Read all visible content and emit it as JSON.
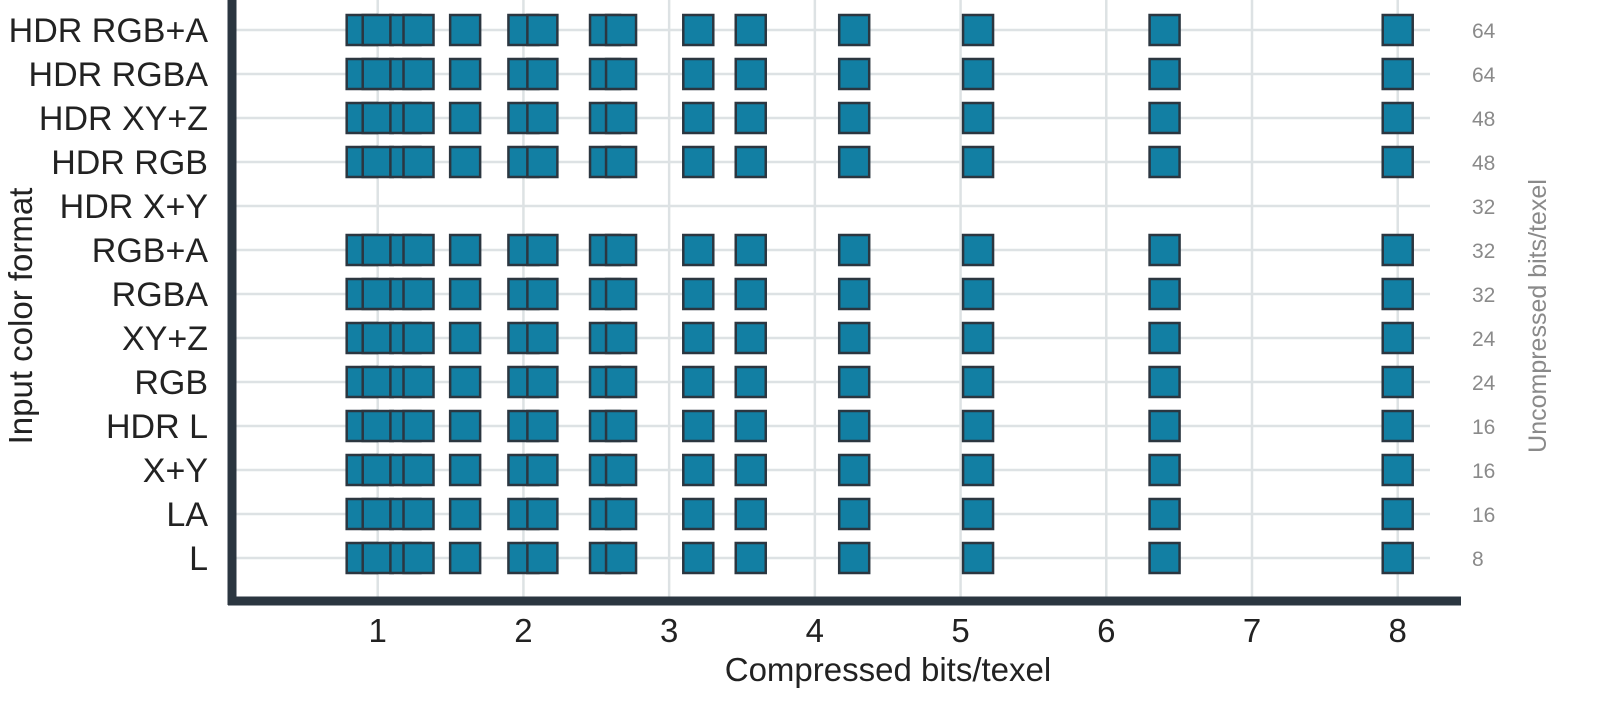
{
  "chart_data": {
    "type": "scatter",
    "marker": "square",
    "xlabel": "Compressed bits/texel",
    "ylabel": "Input color format",
    "y2label": "Uncompressed bits/texel",
    "xlim": [
      0,
      8.4
    ],
    "xticks": [
      1,
      2,
      3,
      4,
      5,
      6,
      7,
      8
    ],
    "categories": [
      "HDR RGB+A",
      "HDR RGBA",
      "HDR XY+Z",
      "HDR RGB",
      "HDR X+Y",
      "RGB+A",
      "RGBA",
      "XY+Z",
      "RGB",
      "HDR L",
      "X+Y",
      "LA",
      "L"
    ],
    "uncompressed_bits": [
      "64",
      "64",
      "48",
      "48",
      "32",
      "32",
      "32",
      "24",
      "24",
      "16",
      "16",
      "16",
      "8"
    ],
    "x_values": [
      0.89,
      1.0,
      1.19,
      1.28,
      1.6,
      2.0,
      2.13,
      2.56,
      2.67,
      3.2,
      3.56,
      4.27,
      5.12,
      6.4,
      8.0
    ],
    "empty_categories": [
      "HDR X+Y"
    ],
    "colors": {
      "marker_fill": "#127fa3",
      "marker_edge": "#2b3640",
      "axis": "#2b3640",
      "grid": "#dde2e4"
    },
    "grid": true
  }
}
